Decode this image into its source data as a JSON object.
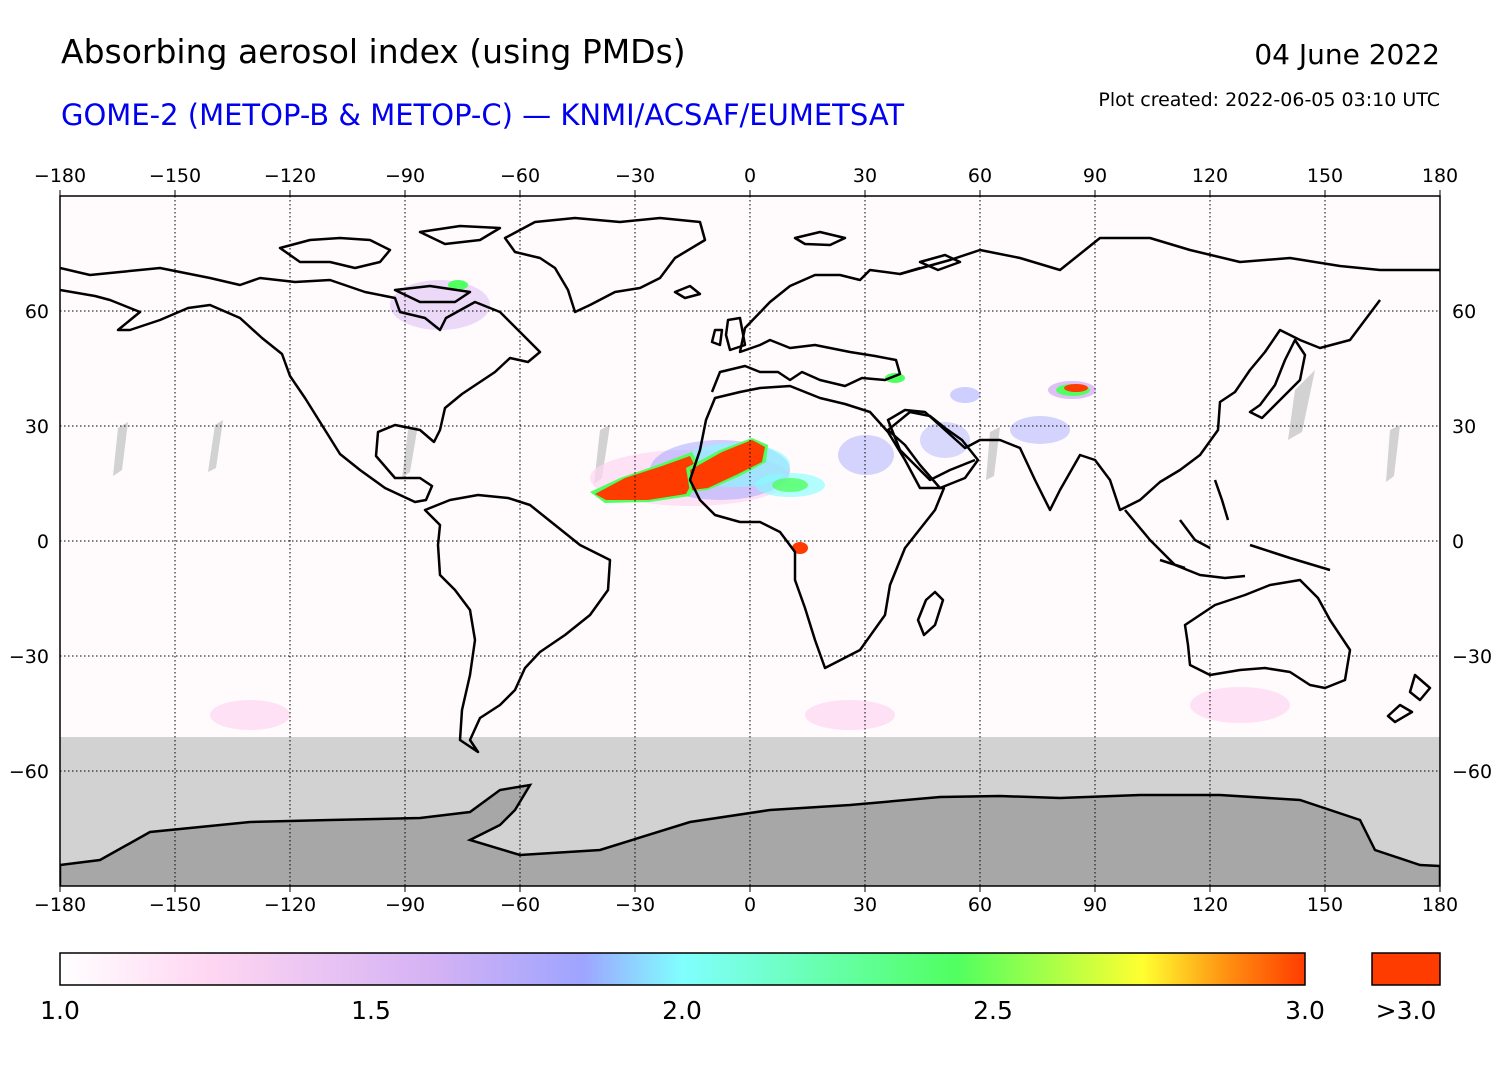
{
  "header": {
    "title": "Absorbing aerosol index (using PMDs)",
    "subtitle": "GOME-2 (METOP-B & METOP-C) — KNMI/ACSAF/EUMETSAT",
    "date": "04 June 2022",
    "created": "Plot created: 2022-06-05 03:10 UTC"
  },
  "map": {
    "lon_range": [
      -180,
      180
    ],
    "lat_range": [
      -90,
      90
    ],
    "lon_ticks": [
      "−180",
      "−150",
      "−120",
      "−90",
      "−60",
      "−30",
      "0",
      "30",
      "60",
      "90",
      "120",
      "150",
      "180"
    ],
    "lat_ticks": [
      "60",
      "30",
      "0",
      "−30",
      "−60"
    ],
    "grid": "dotted",
    "colors": {
      "no_data": "#d2d2d2",
      "antarctica": "#a7a7a7",
      "coastline": "#000000",
      "background": "#fffafc"
    }
  },
  "colorbar": {
    "range": [
      1.0,
      3.0
    ],
    "labels": [
      "1.0",
      "1.5",
      "2.0",
      "2.5",
      "3.0"
    ],
    "overflow_label": ">3.0",
    "overflow_color": "#ff3c00",
    "stops": [
      "#ffffff",
      "#ffd6f2",
      "#d4b2f4",
      "#9ea4ff",
      "#80ffff",
      "#50ff60",
      "#ffff30",
      "#ff8c10",
      "#ff3c00"
    ]
  },
  "aerosol_plumes": [
    {
      "region": "Saharan dust over Atlantic",
      "lon": [
        -40,
        -15
      ],
      "lat": [
        11,
        22
      ],
      "level": ">3.0"
    },
    {
      "region": "Sahara (Mali/Algeria)",
      "lon": [
        -15,
        5
      ],
      "lat": [
        14,
        26
      ],
      "level": ">3.0"
    },
    {
      "region": "Northern India",
      "lon": [
        82,
        90
      ],
      "lat": [
        38,
        40
      ],
      "level": "3.0"
    }
  ]
}
